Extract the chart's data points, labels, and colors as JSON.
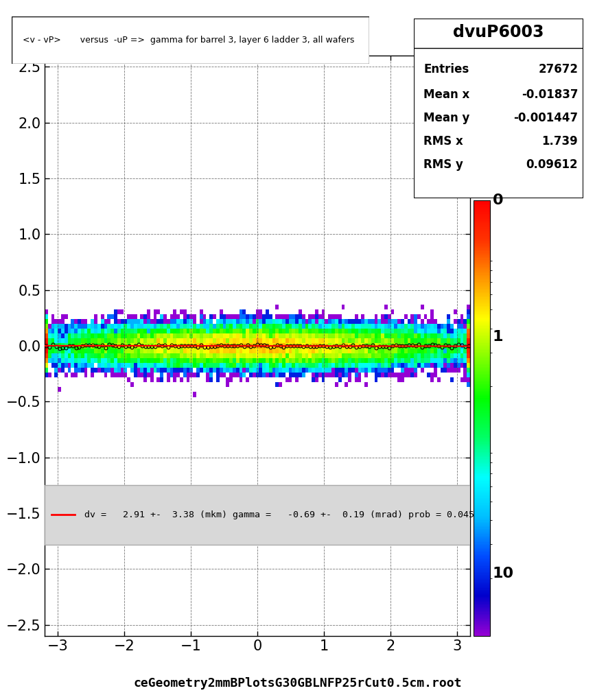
{
  "title": "<v - vP>       versus  -uP =>  gamma for barrel 3, layer 6 ladder 3, all wafers",
  "hist_name": "dvuP6003",
  "entries": 27672,
  "mean_x": -0.01837,
  "mean_y": -0.001447,
  "rms_x": 1.739,
  "rms_y": 0.09612,
  "xlim": [
    -3.2,
    3.2
  ],
  "ylim": [
    -2.6,
    2.6
  ],
  "xticks": [
    -3,
    -2,
    -1,
    0,
    1,
    2,
    3
  ],
  "yticks": [
    -2.5,
    -2.0,
    -1.5,
    -1.0,
    -0.5,
    0.0,
    0.5,
    1.0,
    1.5,
    2.0,
    2.5
  ],
  "fit_label": "dv =   2.91 +-  3.38 (mkm) gamma =   -0.69 +-  0.19 (mrad) prob = 0.045",
  "fit_color": "#ff0000",
  "background_color": "#ffffff",
  "bottom_label": "ceGeometry2mmBPlotsG30GBLNFP25rCut0.5cm.root",
  "gamma_slope": -0.00069,
  "seed": 42,
  "n_xbins": 130,
  "n_ybins": 120
}
